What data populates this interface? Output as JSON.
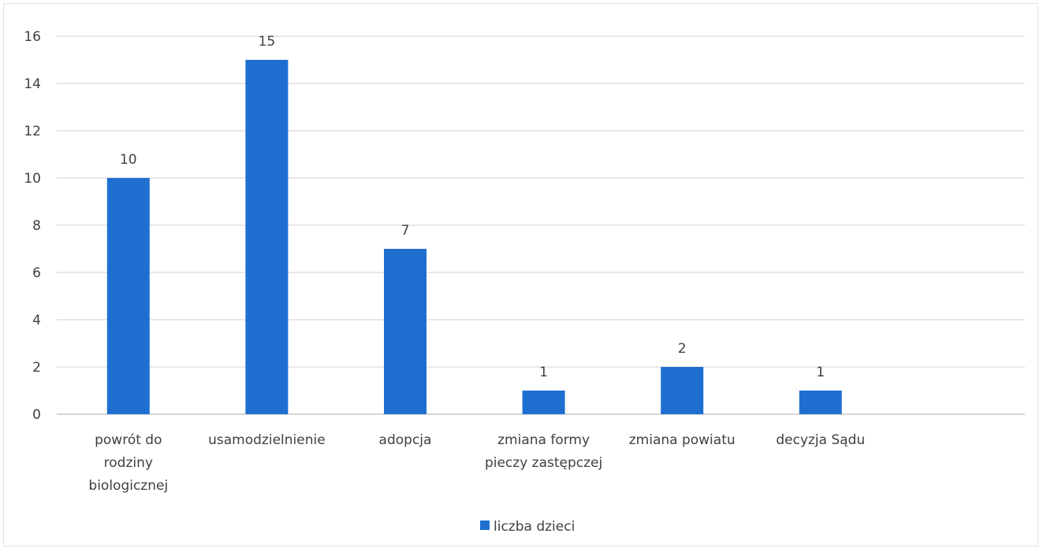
{
  "chart_data": {
    "type": "bar",
    "categories": [
      "powrót do rodziny biologicznej",
      "usamodzielnienie",
      "adopcja",
      "zmiana formy pieczy zastępczej",
      "zmiana powiatu",
      "decyzja Sądu"
    ],
    "category_lines": [
      [
        "powrót do",
        "rodziny",
        "biologicznej"
      ],
      [
        "usamodzielnienie"
      ],
      [
        "adopcja"
      ],
      [
        "zmiana formy",
        "pieczy zastępczej"
      ],
      [
        "zmiana powiatu"
      ],
      [
        "decyzja Sądu"
      ]
    ],
    "series": [
      {
        "name": "liczba dzieci",
        "values": [
          10,
          15,
          7,
          1,
          2,
          1
        ],
        "color": "#1f6fd1"
      }
    ],
    "data_labels": true,
    "ylim": [
      0,
      16
    ],
    "yticks": [
      0,
      2,
      4,
      6,
      8,
      10,
      12,
      14,
      16
    ],
    "grid": true,
    "legend_position": "bottom"
  }
}
